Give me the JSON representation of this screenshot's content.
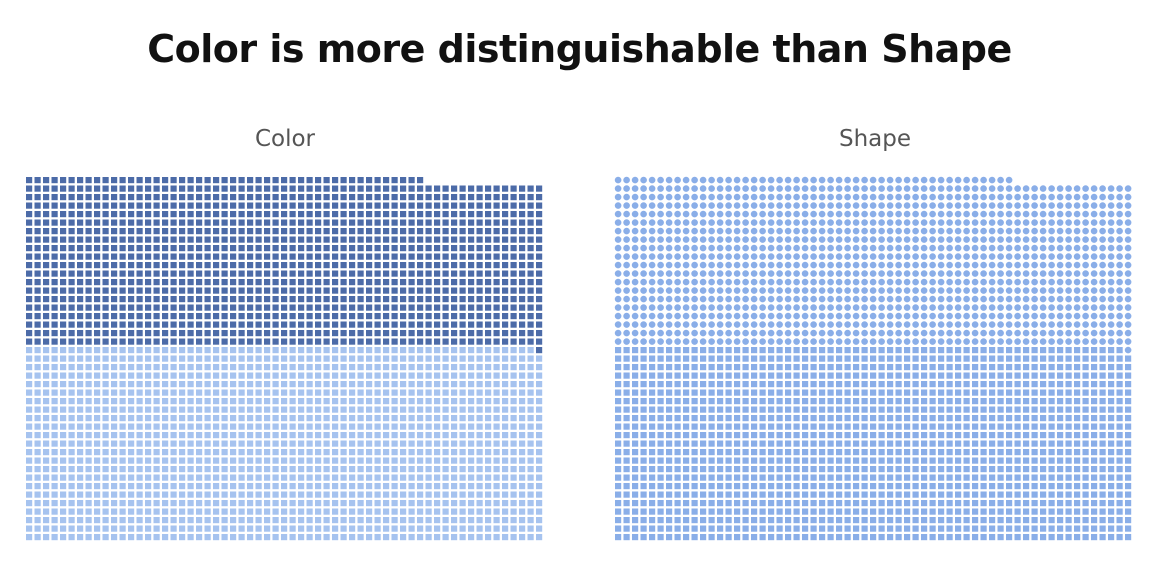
{
  "title": "Color is more distinguishable than Shape",
  "chart_data": [
    {
      "type": "waffle",
      "title": "Color",
      "columns": 61,
      "rows": 43,
      "encoding": "color",
      "mark_shape": "square",
      "series": [
        {
          "color": "#a6c3ef",
          "count": 1402
        },
        {
          "color": "#4c6ba8",
          "count": 1207
        }
      ]
    },
    {
      "type": "waffle",
      "title": "Shape",
      "columns": 61,
      "rows": 43,
      "encoding": "shape",
      "mark_color": "#8aaee8",
      "series": [
        {
          "shape": "square",
          "count": 1402
        },
        {
          "shape": "circle",
          "count": 1207
        }
      ]
    }
  ]
}
